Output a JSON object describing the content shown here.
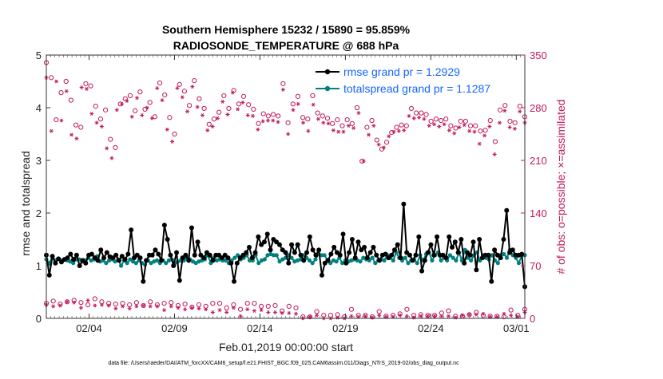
{
  "chart_data": {
    "type": "line",
    "title": "Southern Hemisphere 15232 / 15890 = 95.859%",
    "subtitle": "RADIOSONDE_TEMPERATURE @ 688 hPa",
    "xlabel": "Feb.01,2019 00:00:00 start",
    "ylabel": "rmse and totalspread",
    "y2label": "# of obs: o=possible; ×=assimilated",
    "footer": "data file: /Users/raeder/DAI/ATM_forcXX/CAM6_setup/f.e21.FHIST_BGC.f09_025.CAM6assim.011/Diags_NTrS_2019-02/obs_diag_output.nc",
    "xlim": [
      1,
      29
    ],
    "ylim": [
      0,
      5
    ],
    "y2lim": [
      0,
      350
    ],
    "x_tick_labels": [
      "02/04",
      "02/09",
      "02/14",
      "02/19",
      "02/24",
      "03/01"
    ],
    "x_tick_positions": [
      3.5,
      8.5,
      13.5,
      18.5,
      23.5,
      28.5
    ],
    "y_ticks": [
      0,
      1,
      2,
      3,
      4,
      5
    ],
    "y2_ticks": [
      0,
      70,
      140,
      210,
      280,
      350
    ],
    "x_minor_interval": 0.25,
    "legend": {
      "entries": [
        "rmse grand pr = 1.2929",
        "totalspread grand pr = 1.1287"
      ],
      "location": "top-right"
    },
    "colors": {
      "rmse": "#000000",
      "totalspread": "#00807f",
      "obs": "#c2185b",
      "legend_text": "#1565ff"
    },
    "series": [
      {
        "name": "rmse",
        "values": [
          1.2,
          0.82,
          1.18,
          1.05,
          1.13,
          1.07,
          1.12,
          1.15,
          1.22,
          1.12,
          1.2,
          1.0,
          1.1,
          1.05,
          1.2,
          1.22,
          1.15,
          1.1,
          1.3,
          1.15,
          1.25,
          1.17,
          1.15,
          1.2,
          1.1,
          1.18,
          1.12,
          1.22,
          1.68,
          1.15,
          1.2,
          1.15,
          0.7,
          1.1,
          1.2,
          1.2,
          1.3,
          1.22,
          1.1,
          1.77,
          1.5,
          1.2,
          1.0,
          1.25,
          0.72,
          1.15,
          1.2,
          1.1,
          1.72,
          1.2,
          1.45,
          1.2,
          1.15,
          1.25,
          1.2,
          1.1,
          1.2,
          1.2,
          1.15,
          1.2,
          1.15,
          1.05,
          0.7,
          1.05,
          1.15,
          1.2,
          1.25,
          1.35,
          1.15,
          1.25,
          1.55,
          1.4,
          1.45,
          1.6,
          1.3,
          1.5,
          1.45,
          1.4,
          1.3,
          1.25,
          1.05,
          1.4,
          1.25,
          1.4,
          1.2,
          1.1,
          1.25,
          1.55,
          1.3,
          1.2,
          1.3,
          0.82,
          1.05,
          1.1,
          1.22,
          1.35,
          1.25,
          1.2,
          1.6,
          1.05,
          1.25,
          1.5,
          1.15,
          1.45,
          1.3,
          1.35,
          1.15,
          1.25,
          1.35,
          1.2,
          1.1,
          1.2,
          1.22,
          1.15,
          1.2,
          1.3,
          1.4,
          1.15,
          2.17,
          1.25,
          1.2,
          1.1,
          1.2,
          1.55,
          0.9,
          1.1,
          1.25,
          1.4,
          1.2,
          1.55,
          1.2,
          1.2,
          1.15,
          1.55,
          1.35,
          1.45,
          1.25,
          1.5,
          1.05,
          1.25,
          1.2,
          1.45,
          0.92,
          1.5,
          1.15,
          1.2,
          1.2,
          0.7,
          1.3,
          1.2,
          1.15,
          1.5,
          2.05,
          1.25,
          1.3,
          1.2,
          1.2,
          1.22,
          0.6
        ]
      },
      {
        "name": "totalspread",
        "values": [
          1.12,
          1.05,
          1.17,
          1.1,
          1.13,
          1.1,
          1.12,
          1.1,
          1.08,
          1.05,
          1.12,
          1.12,
          1.08,
          1.1,
          1.15,
          1.1,
          1.12,
          1.18,
          1.08,
          1.1,
          1.05,
          1.1,
          1.12,
          1.08,
          1.12,
          1.0,
          1.1,
          1.05,
          1.12,
          1.08,
          1.05,
          1.1,
          1.05,
          1.02,
          1.1,
          1.05,
          1.08,
          1.1,
          1.05,
          1.1,
          1.05,
          1.1,
          1.12,
          1.05,
          1.08,
          1.1,
          1.1,
          1.15,
          1.12,
          1.08,
          1.05,
          1.08,
          1.1,
          1.12,
          1.2,
          1.05,
          1.15,
          1.1,
          1.12,
          1.1,
          1.1,
          1.05,
          1.1,
          1.15,
          1.2,
          1.12,
          1.15,
          1.2,
          1.1,
          1.1,
          1.2,
          1.05,
          1.1,
          1.12,
          1.2,
          1.22,
          1.2,
          1.2,
          1.08,
          1.12,
          1.15,
          1.2,
          1.15,
          1.08,
          1.1,
          1.12,
          1.2,
          1.15,
          1.1,
          1.05,
          1.12,
          1.22,
          1.2,
          1.2,
          1.1,
          1.05,
          1.1,
          1.08,
          1.15,
          1.05,
          1.1,
          1.08,
          1.1,
          1.12,
          1.1,
          1.08,
          1.15,
          1.12,
          1.1,
          1.15,
          1.05,
          1.1,
          1.12,
          1.1,
          1.2,
          1.15,
          1.1,
          1.25,
          1.15,
          1.1,
          1.15,
          1.05,
          1.1,
          1.12,
          1.05,
          1.2,
          1.1,
          1.22,
          1.25,
          1.1,
          1.2,
          1.25,
          1.1,
          1.15,
          1.1,
          1.2,
          1.15,
          1.1,
          1.25,
          1.1,
          1.3,
          1.15,
          1.1,
          1.2,
          1.25,
          1.1,
          1.2,
          1.15,
          1.12,
          1.2,
          1.1,
          1.05,
          1.2,
          1.22,
          1.15,
          1.3,
          1.2,
          1.15,
          1.05,
          1.2,
          1.2
        ]
      },
      {
        "name": "obs possible (o)",
        "axis": "right",
        "values": [
          340,
          320,
          264,
          300,
          315,
          290,
          257,
          254,
          312,
          309,
          282,
          265,
          277,
          238,
          227,
          285,
          292,
          296,
          276,
          301,
          278,
          287,
          268,
          313,
          297,
          267,
          245,
          311,
          302,
          283,
          316,
          292,
          279,
          258,
          265,
          274,
          296,
          279,
          303,
          285,
          295,
          284,
          278,
          259,
          272,
          269,
          271,
          269,
          312,
          260,
          285,
          295,
          267,
          265,
          296,
          273,
          269,
          266,
          259,
          264,
          256,
          264,
          259,
          280,
          209,
          254,
          263,
          237,
          225,
          234,
          247,
          254,
          257,
          256,
          279,
          273,
          273,
          271,
          262,
          265,
          263,
          265,
          256,
          253,
          262,
          262,
          256,
          256,
          249,
          250,
          263,
          235,
          277,
          283,
          262,
          260,
          282,
          268
        ]
      },
      {
        "name": "obs assimilated (x)",
        "axis": "right",
        "values": [
          320,
          249,
          315,
          263,
          302,
          244,
          239,
          307,
          305,
          272,
          260,
          255,
          226,
          213,
          277,
          285,
          289,
          268,
          293,
          270,
          280,
          266,
          306,
          290,
          251,
          235,
          306,
          294,
          275,
          308,
          281,
          270,
          250,
          255,
          266,
          288,
          271,
          300,
          278,
          287,
          270,
          269,
          251,
          262,
          263,
          263,
          261,
          304,
          245,
          277,
          285,
          260,
          249,
          284,
          265,
          260,
          259,
          250,
          248,
          248,
          256,
          253,
          273,
          209,
          244,
          256,
          231,
          227,
          242,
          248,
          249,
          250,
          269,
          266,
          267,
          265,
          256,
          258,
          255,
          258,
          250,
          246,
          254,
          257,
          249,
          248,
          232,
          243,
          255,
          218,
          260,
          276,
          254,
          252,
          275,
          260
        ]
      },
      {
        "name": "obs possible low (o)",
        "axis": "right",
        "values": [
          20,
          23,
          19,
          22,
          24,
          21,
          18,
          26,
          22,
          20,
          19,
          20,
          18,
          21,
          17,
          22,
          18,
          20,
          21,
          17,
          19,
          15,
          18,
          16,
          20,
          20,
          14,
          18,
          12,
          20,
          20,
          16,
          16,
          17,
          10,
          16,
          14,
          2,
          2,
          9,
          4,
          4,
          5,
          2,
          12,
          4,
          4,
          2,
          9,
          3,
          4,
          6,
          12,
          4,
          5,
          4,
          4,
          7,
          10,
          3,
          3,
          5,
          8,
          4,
          3,
          3,
          2,
          11,
          4,
          12
        ]
      },
      {
        "name": "obs assimilated low (x)",
        "axis": "right",
        "values": [
          18,
          16,
          17,
          22,
          21,
          14,
          24,
          17,
          18,
          17,
          13,
          16,
          13,
          16,
          17,
          16,
          16,
          11,
          16,
          14,
          12,
          14,
          13,
          12,
          8,
          11,
          8,
          14,
          3,
          12,
          10,
          11,
          8,
          8,
          7,
          7,
          6,
          0,
          2,
          4,
          0,
          0,
          1,
          0,
          3,
          2,
          3,
          1,
          4,
          2,
          2,
          4,
          3,
          1,
          3,
          3,
          3,
          3,
          3,
          1,
          4,
          5,
          5,
          6,
          2,
          2,
          6,
          4,
          2,
          8
        ]
      }
    ]
  }
}
